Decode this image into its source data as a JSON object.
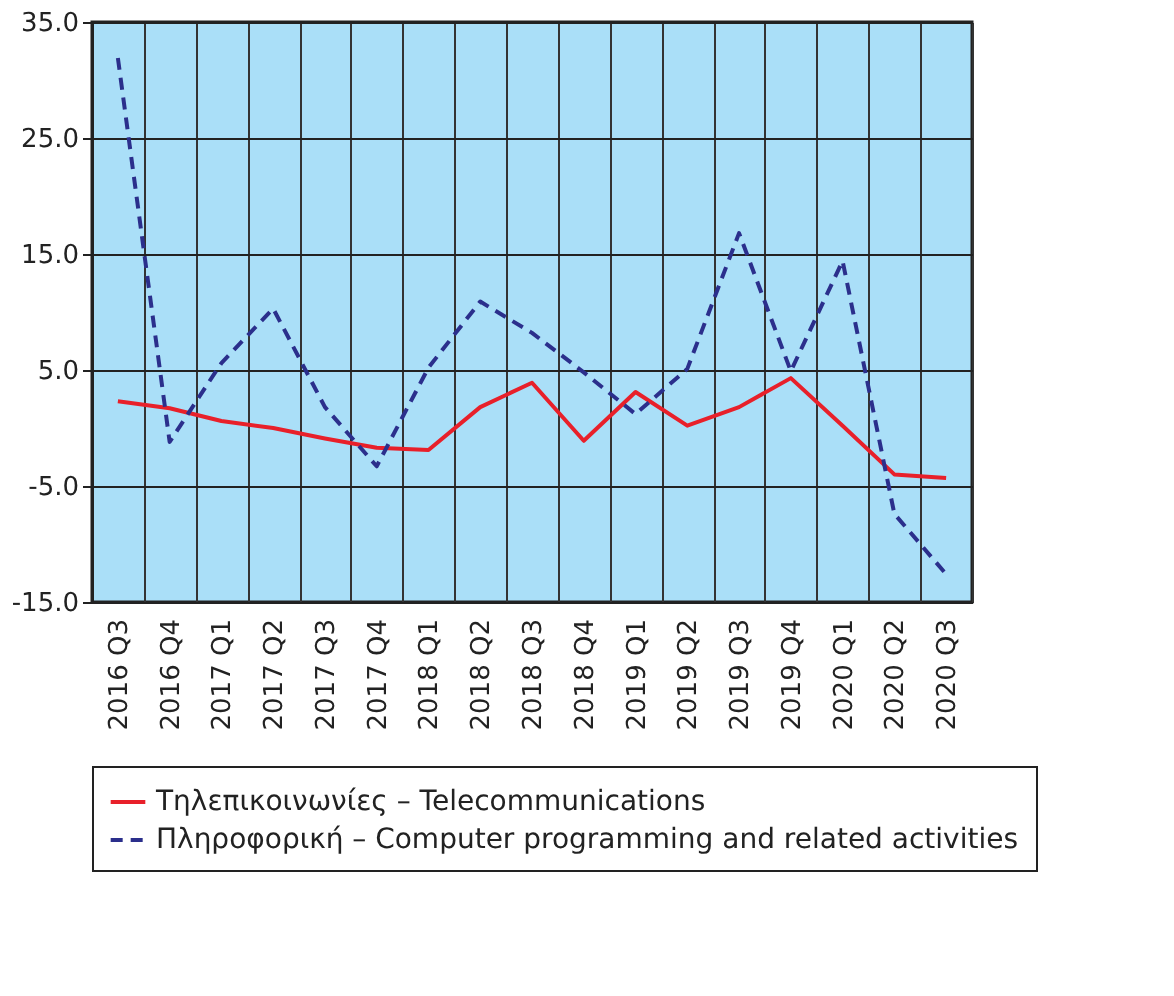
{
  "chart_data": {
    "type": "line",
    "categories": [
      "2016 Q3",
      "2016 Q4",
      "2017 Q1",
      "2017 Q2",
      "2017 Q3",
      "2017 Q4",
      "2018 Q1",
      "2018 Q2",
      "2018 Q3",
      "2018 Q4",
      "2019 Q1",
      "2019 Q2",
      "2019 Q3",
      "2019 Q4",
      "2020 Q1",
      "2020 Q2",
      "2020 Q3"
    ],
    "series": [
      {
        "name": "Τηλεπικοινωνίες – Telecommunications",
        "color": "#e8202a",
        "line_style": "solid",
        "values": [
          2.3,
          1.7,
          0.6,
          0.0,
          -0.9,
          -1.7,
          -1.9,
          1.8,
          3.9,
          -1.1,
          3.1,
          0.2,
          1.8,
          4.3,
          0.2,
          -4.0,
          -4.3
        ]
      },
      {
        "name": "Πληροφορική – Computer programming and related activities",
        "color": "#2b2f8c",
        "line_style": "dashed",
        "values": [
          31.9,
          -1.2,
          5.6,
          10.3,
          1.8,
          -3.3,
          5.2,
          10.9,
          8.2,
          4.8,
          1.2,
          5.1,
          16.8,
          4.9,
          14.4,
          -7.4,
          -12.6
        ]
      }
    ],
    "ylim": [
      -15,
      35
    ],
    "yticks": [
      {
        "value": -15,
        "label": "-15.0"
      },
      {
        "value": -5,
        "label": "-5.0"
      },
      {
        "value": 5,
        "label": "5.0"
      },
      {
        "value": 15,
        "label": "15.0"
      },
      {
        "value": 25,
        "label": "25.0"
      },
      {
        "value": 35,
        "label": "35.0"
      }
    ],
    "grid": true,
    "legend": "bottom",
    "marker": "none"
  }
}
